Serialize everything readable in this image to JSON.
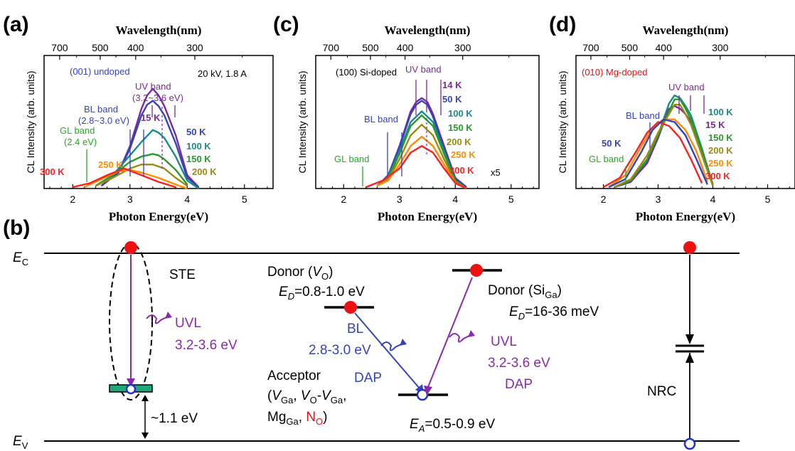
{
  "colors": {
    "s300": "#ff2020",
    "s250": "#ff8c00",
    "s200": "#9a8a10",
    "s150": "#2a9a2a",
    "s100": "#1a8a8a",
    "s50": "#3344bb",
    "s15": "#7a2a9a",
    "uv": "#7a2a9a",
    "bl": "#3344bb",
    "gl": "#22aa22",
    "red": "#ee1111",
    "trap": "#1fa87a"
  },
  "common": {
    "top_label": "Wavelength(nm)",
    "x_label": "Photon Energy(eV)",
    "y_label": "CL Intensity (arb. units)",
    "top_ticks": [
      "700",
      "500",
      "400",
      "300"
    ],
    "bottom_ticks": [
      "2",
      "3",
      "4",
      "5"
    ]
  },
  "panel_b": {
    "label": "(b)",
    "ec": "E",
    "ec_sub": "C",
    "ev": "E",
    "ev_sub": "V",
    "ste": "STE",
    "uvl": "UVL",
    "uvl_energy": "3.2-3.6 eV",
    "gap": "~1.1 eV",
    "donor_vo": "Donor (",
    "donor_vo_v": "V",
    "donor_vo_sub": "O",
    "donor_vo_close": ")",
    "ed1_e": "E",
    "ed1_sub": "D",
    "ed1_val": "=0.8-1.0 eV",
    "bl": "BL",
    "bl_energy": "2.8-3.0 eV",
    "dap1": "DAP",
    "acceptor": "Acceptor",
    "acc_l2a": "(",
    "acc_l2b": "V",
    "acc_l2c": "Ga",
    "acc_l2d": ", ",
    "acc_l2e": "V",
    "acc_l2f": "O",
    "acc_l2g": "-",
    "acc_l2h": "V",
    "acc_l2i": "Ga",
    "acc_l2j": ",",
    "acc_l3a": "Mg",
    "acc_l3b": "Ga",
    "acc_l3c": ", ",
    "acc_l3d": "N",
    "acc_l3e": "O",
    "acc_l3f": ")",
    "ea_e": "E",
    "ea_sub": "A",
    "ea_val": "=0.5-0.9 eV",
    "donor_si": "Donor (Si",
    "donor_si_sub": "Ga",
    "donor_si_close": ")",
    "ed2_e": "E",
    "ed2_sub": "D",
    "ed2_val": "=16-36 meV",
    "uvl2": "UVL",
    "uvl2_energy": "3.2-3.6 eV",
    "dap2": "DAP",
    "nrc": "NRC"
  },
  "chart_data": [
    {
      "type": "line",
      "panel": "(a)",
      "title": "(001) undoped",
      "condition": "20 kV, 1.8 A",
      "xlabel": "Photon Energy(eV)",
      "ylabel": "CL Intensity (arb. units)",
      "top_axis_label": "Wavelength(nm)",
      "xlim": [
        1.5,
        5.5
      ],
      "top_ticks_nm": [
        700,
        500,
        400,
        300
      ],
      "x_ticks": [
        2,
        3,
        4,
        5
      ],
      "ylim": [
        0,
        1
      ],
      "bands": {
        "uv": "UV band",
        "uv_range": "(3.2~3.6 eV)",
        "bl": "BL band",
        "bl_range": "(2.8~3.0 eV)",
        "gl": "GL band",
        "gl_range": "(2.4 eV)"
      },
      "series": [
        {
          "name": "15 K",
          "x": [
            2.5,
            2.8,
            3.0,
            3.2,
            3.3,
            3.4,
            3.5,
            3.6,
            3.8,
            4.0,
            4.2
          ],
          "values": [
            0.02,
            0.12,
            0.32,
            0.6,
            0.7,
            0.75,
            0.7,
            0.62,
            0.4,
            0.1,
            0.01
          ]
        },
        {
          "name": "50 K",
          "x": [
            2.5,
            2.8,
            3.0,
            3.2,
            3.3,
            3.4,
            3.5,
            3.6,
            3.8,
            4.0,
            4.2
          ],
          "values": [
            0.02,
            0.12,
            0.3,
            0.55,
            0.63,
            0.66,
            0.62,
            0.55,
            0.34,
            0.08,
            0.01
          ]
        },
        {
          "name": "100 K",
          "x": [
            2.4,
            2.7,
            3.0,
            3.2,
            3.4,
            3.5,
            3.6,
            3.8,
            4.0,
            4.2
          ],
          "values": [
            0.02,
            0.1,
            0.25,
            0.35,
            0.44,
            0.42,
            0.38,
            0.24,
            0.06,
            0.0
          ]
        },
        {
          "name": "150 K",
          "x": [
            2.4,
            2.7,
            3.0,
            3.2,
            3.4,
            3.5,
            3.6,
            3.8,
            4.0
          ],
          "values": [
            0.02,
            0.1,
            0.2,
            0.24,
            0.26,
            0.25,
            0.22,
            0.14,
            0.03
          ]
        },
        {
          "name": "200 K",
          "x": [
            2.4,
            2.7,
            3.0,
            3.2,
            3.4,
            3.6,
            3.8,
            4.0
          ],
          "values": [
            0.02,
            0.08,
            0.15,
            0.18,
            0.18,
            0.15,
            0.08,
            0.02
          ]
        },
        {
          "name": "250 K",
          "x": [
            2.2,
            2.5,
            2.8,
            3.0,
            3.2,
            3.5,
            3.8,
            4.0
          ],
          "values": [
            0.01,
            0.07,
            0.13,
            0.14,
            0.12,
            0.08,
            0.03,
            0.0
          ]
        },
        {
          "name": "300 K",
          "x": [
            2.0,
            2.3,
            2.6,
            2.9,
            3.2,
            3.5,
            3.8
          ],
          "values": [
            0.01,
            0.04,
            0.1,
            0.15,
            0.1,
            0.05,
            0.01
          ]
        }
      ]
    },
    {
      "type": "line",
      "panel": "(c)",
      "title": "(100) Si-doped",
      "xlabel": "Photon Energy(eV)",
      "ylabel": "CL Intensity (arb. units)",
      "top_axis_label": "Wavelength(nm)",
      "xlim": [
        1.5,
        5.5
      ],
      "top_ticks_nm": [
        700,
        500,
        400,
        300
      ],
      "x_ticks": [
        2,
        3,
        4,
        5
      ],
      "ylim": [
        0,
        1
      ],
      "scale_note": "x5",
      "bands": {
        "uv": "UV band",
        "bl": "BL band",
        "gl": "GL band"
      },
      "series": [
        {
          "name": "14 K",
          "x": [
            2.6,
            2.8,
            3.0,
            3.2,
            3.3,
            3.4,
            3.5,
            3.6,
            3.8,
            4.0,
            4.2
          ],
          "values": [
            0.02,
            0.1,
            0.32,
            0.58,
            0.65,
            0.68,
            0.65,
            0.56,
            0.32,
            0.08,
            0.01
          ]
        },
        {
          "name": "50 K",
          "x": [
            2.6,
            2.8,
            3.0,
            3.2,
            3.3,
            3.4,
            3.5,
            3.6,
            3.8,
            4.0,
            4.2
          ],
          "values": [
            0.02,
            0.1,
            0.31,
            0.56,
            0.63,
            0.66,
            0.63,
            0.54,
            0.3,
            0.07,
            0.01
          ]
        },
        {
          "name": "100 K",
          "x": [
            2.6,
            2.8,
            3.0,
            3.2,
            3.4,
            3.6,
            3.8,
            4.0,
            4.2
          ],
          "values": [
            0.02,
            0.09,
            0.28,
            0.5,
            0.58,
            0.5,
            0.28,
            0.06,
            0.0
          ]
        },
        {
          "name": "150 K",
          "x": [
            2.6,
            2.8,
            3.0,
            3.2,
            3.4,
            3.6,
            3.8,
            4.0,
            4.2
          ],
          "values": [
            0.02,
            0.08,
            0.26,
            0.47,
            0.55,
            0.47,
            0.26,
            0.06,
            0.0
          ]
        },
        {
          "name": "200 K",
          "x": [
            2.6,
            2.8,
            3.0,
            3.2,
            3.4,
            3.6,
            3.8,
            4.0,
            4.2
          ],
          "values": [
            0.02,
            0.07,
            0.22,
            0.4,
            0.48,
            0.4,
            0.22,
            0.05,
            0.0
          ]
        },
        {
          "name": "250 K",
          "x": [
            2.6,
            2.8,
            3.0,
            3.2,
            3.4,
            3.6,
            3.8,
            4.0,
            4.2
          ],
          "values": [
            0.02,
            0.06,
            0.18,
            0.32,
            0.39,
            0.32,
            0.18,
            0.04,
            0.0
          ]
        },
        {
          "name": "300 K",
          "x": [
            2.4,
            2.7,
            3.0,
            3.2,
            3.4,
            3.6,
            3.8,
            4.0,
            4.2
          ],
          "values": [
            0.01,
            0.06,
            0.15,
            0.27,
            0.32,
            0.27,
            0.15,
            0.04,
            0.0
          ]
        }
      ]
    },
    {
      "type": "line",
      "panel": "(d)",
      "title": "(010) Mg-doped",
      "xlabel": "Photon Energy(eV)",
      "ylabel": "CL Intensity (arb. units)",
      "top_axis_label": "Wavelength(nm)",
      "xlim": [
        1.5,
        5.5
      ],
      "top_ticks_nm": [
        700,
        500,
        400,
        300
      ],
      "x_ticks": [
        2,
        3,
        4,
        5
      ],
      "ylim": [
        0,
        1
      ],
      "bands": {
        "uv": "UV band",
        "bl": "BL band",
        "gl": "GL band"
      },
      "series": [
        {
          "name": "100 K",
          "x": [
            2.2,
            2.5,
            2.8,
            3.0,
            3.2,
            3.3,
            3.4,
            3.5,
            3.6,
            3.8,
            4.0
          ],
          "values": [
            0.01,
            0.05,
            0.2,
            0.4,
            0.64,
            0.7,
            0.68,
            0.62,
            0.55,
            0.3,
            0.03
          ]
        },
        {
          "name": "15 K",
          "x": [
            2.2,
            2.5,
            2.8,
            3.0,
            3.2,
            3.3,
            3.4,
            3.5,
            3.6,
            3.8,
            4.0
          ],
          "values": [
            0.01,
            0.05,
            0.19,
            0.38,
            0.6,
            0.62,
            0.6,
            0.56,
            0.5,
            0.28,
            0.03
          ]
        },
        {
          "name": "150 K",
          "x": [
            2.2,
            2.5,
            2.8,
            3.0,
            3.2,
            3.3,
            3.4,
            3.5,
            3.6,
            3.8,
            4.0
          ],
          "values": [
            0.01,
            0.06,
            0.22,
            0.4,
            0.58,
            0.67,
            0.67,
            0.6,
            0.52,
            0.28,
            0.03
          ]
        },
        {
          "name": "200 K",
          "x": [
            2.2,
            2.5,
            2.8,
            3.0,
            3.2,
            3.3,
            3.4,
            3.5,
            3.6,
            3.8,
            4.0
          ],
          "values": [
            0.01,
            0.07,
            0.25,
            0.42,
            0.56,
            0.63,
            0.63,
            0.56,
            0.48,
            0.25,
            0.02
          ]
        },
        {
          "name": "250 K",
          "x": [
            2.1,
            2.4,
            2.7,
            2.9,
            3.1,
            3.3,
            3.5,
            3.7,
            3.9
          ],
          "values": [
            0.01,
            0.1,
            0.32,
            0.46,
            0.52,
            0.52,
            0.44,
            0.28,
            0.05
          ]
        },
        {
          "name": "300 K",
          "x": [
            2.0,
            2.3,
            2.6,
            2.8,
            3.0,
            3.2,
            3.4,
            3.6,
            3.8
          ],
          "values": [
            0.01,
            0.08,
            0.28,
            0.42,
            0.5,
            0.47,
            0.38,
            0.22,
            0.04
          ]
        },
        {
          "name": "50 K",
          "x": [
            2.1,
            2.4,
            2.7,
            2.9,
            3.1,
            3.3,
            3.5,
            3.7,
            3.9
          ],
          "values": [
            0.01,
            0.07,
            0.28,
            0.44,
            0.52,
            0.5,
            0.4,
            0.22,
            0.03
          ]
        }
      ]
    }
  ]
}
